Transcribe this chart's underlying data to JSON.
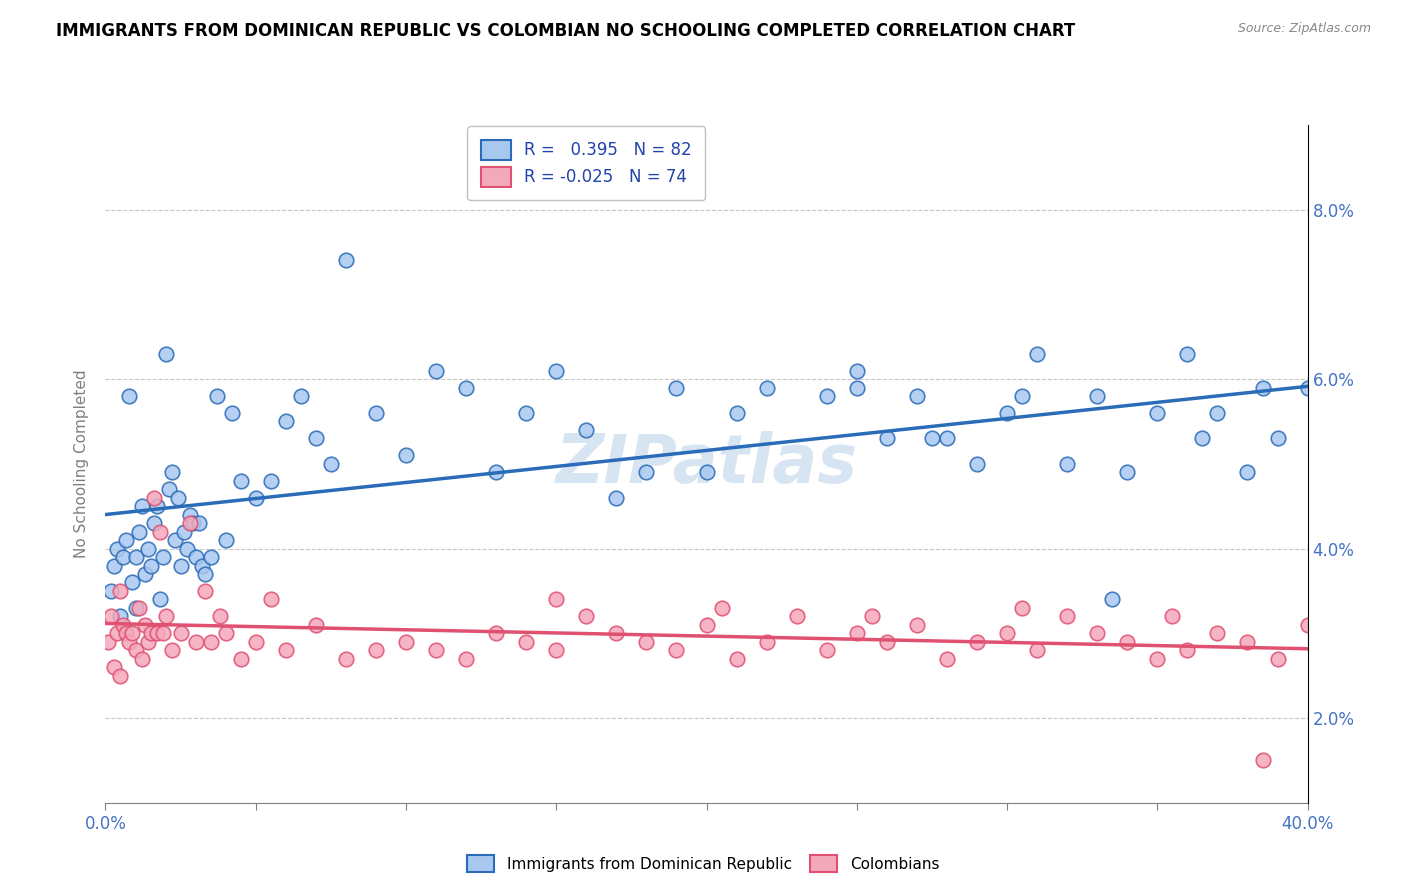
{
  "title": "IMMIGRANTS FROM DOMINICAN REPUBLIC VS COLOMBIAN NO SCHOOLING COMPLETED CORRELATION CHART",
  "source": "Source: ZipAtlas.com",
  "ylabel": "No Schooling Completed",
  "yticks": [
    2.0,
    4.0,
    6.0,
    8.0
  ],
  "xticks": [
    0.0,
    5.0,
    10.0,
    15.0,
    20.0,
    25.0,
    30.0,
    35.0,
    40.0
  ],
  "blue_R": 0.395,
  "blue_N": 82,
  "pink_R": -0.025,
  "pink_N": 74,
  "legend_label_blue": "Immigrants from Dominican Republic",
  "legend_label_pink": "Colombians",
  "blue_color": "#A8C8F0",
  "pink_color": "#F4A8BC",
  "blue_line_color": "#2B6CB8",
  "pink_line_color": "#E05070",
  "watermark": "ZIPatlas",
  "blue_scatter_x": [
    0.2,
    0.3,
    0.4,
    0.5,
    0.6,
    0.7,
    0.8,
    0.9,
    1.0,
    1.0,
    1.1,
    1.2,
    1.3,
    1.4,
    1.5,
    1.6,
    1.7,
    1.8,
    1.9,
    2.0,
    2.1,
    2.2,
    2.3,
    2.4,
    2.5,
    2.6,
    2.7,
    2.8,
    2.9,
    3.0,
    3.1,
    3.2,
    3.3,
    3.5,
    3.7,
    4.0,
    4.2,
    4.5,
    5.0,
    5.5,
    6.0,
    6.5,
    7.0,
    7.5,
    8.0,
    9.0,
    10.0,
    11.0,
    12.0,
    13.0,
    14.0,
    15.0,
    16.0,
    17.0,
    18.0,
    19.0,
    20.0,
    21.0,
    22.0,
    24.0,
    25.0,
    26.0,
    27.0,
    28.0,
    29.0,
    30.0,
    31.0,
    32.0,
    33.0,
    34.0,
    35.0,
    36.0,
    37.0,
    38.0,
    39.0,
    40.0,
    25.0,
    27.5,
    30.5,
    33.5,
    36.5,
    38.5
  ],
  "blue_scatter_y": [
    3.5,
    3.8,
    4.0,
    3.2,
    3.9,
    4.1,
    5.8,
    3.6,
    3.3,
    3.9,
    4.2,
    4.5,
    3.7,
    4.0,
    3.8,
    4.3,
    4.5,
    3.4,
    3.9,
    6.3,
    4.7,
    4.9,
    4.1,
    4.6,
    3.8,
    4.2,
    4.0,
    4.4,
    4.3,
    3.9,
    4.3,
    3.8,
    3.7,
    3.9,
    5.8,
    4.1,
    5.6,
    4.8,
    4.6,
    4.8,
    5.5,
    5.8,
    5.3,
    5.0,
    7.4,
    5.6,
    5.1,
    6.1,
    5.9,
    4.9,
    5.6,
    6.1,
    5.4,
    4.6,
    4.9,
    5.9,
    4.9,
    5.6,
    5.9,
    5.8,
    6.1,
    5.3,
    5.8,
    5.3,
    5.0,
    5.6,
    6.3,
    5.0,
    5.8,
    4.9,
    5.6,
    6.3,
    5.6,
    4.9,
    5.3,
    5.9,
    5.9,
    5.3,
    5.8,
    3.4,
    5.3,
    5.9
  ],
  "pink_scatter_x": [
    0.1,
    0.2,
    0.3,
    0.4,
    0.5,
    0.5,
    0.6,
    0.7,
    0.8,
    0.9,
    1.0,
    1.1,
    1.2,
    1.3,
    1.4,
    1.5,
    1.6,
    1.7,
    1.8,
    1.9,
    2.0,
    2.2,
    2.5,
    2.8,
    3.0,
    3.3,
    3.5,
    3.8,
    4.0,
    4.5,
    5.0,
    5.5,
    6.0,
    7.0,
    8.0,
    9.0,
    10.0,
    11.0,
    12.0,
    13.0,
    14.0,
    15.0,
    16.0,
    17.0,
    18.0,
    19.0,
    20.0,
    21.0,
    22.0,
    23.0,
    24.0,
    25.0,
    26.0,
    27.0,
    28.0,
    29.0,
    30.0,
    31.0,
    32.0,
    33.0,
    34.0,
    35.0,
    36.0,
    37.0,
    38.0,
    39.0,
    40.0,
    41.0,
    15.0,
    20.5,
    25.5,
    30.5,
    35.5,
    38.5
  ],
  "pink_scatter_y": [
    2.9,
    3.2,
    2.6,
    3.0,
    2.5,
    3.5,
    3.1,
    3.0,
    2.9,
    3.0,
    2.8,
    3.3,
    2.7,
    3.1,
    2.9,
    3.0,
    4.6,
    3.0,
    4.2,
    3.0,
    3.2,
    2.8,
    3.0,
    4.3,
    2.9,
    3.5,
    2.9,
    3.2,
    3.0,
    2.7,
    2.9,
    3.4,
    2.8,
    3.1,
    2.7,
    2.8,
    2.9,
    2.8,
    2.7,
    3.0,
    2.9,
    2.8,
    3.2,
    3.0,
    2.9,
    2.8,
    3.1,
    2.7,
    2.9,
    3.2,
    2.8,
    3.0,
    2.9,
    3.1,
    2.7,
    2.9,
    3.0,
    2.8,
    3.2,
    3.0,
    2.9,
    2.7,
    2.8,
    3.0,
    2.9,
    2.7,
    3.1,
    2.8,
    3.4,
    3.3,
    3.2,
    3.3,
    3.2,
    1.5
  ]
}
